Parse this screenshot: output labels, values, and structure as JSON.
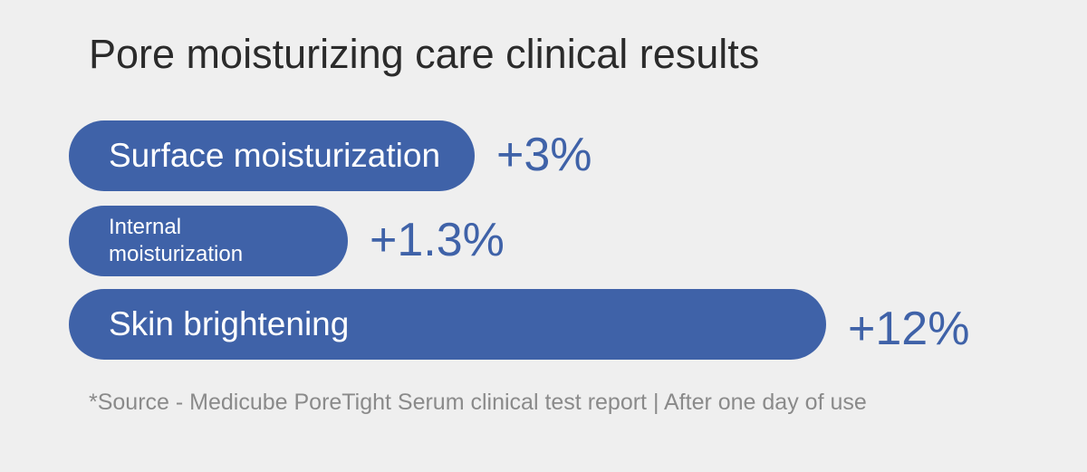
{
  "chart_data": {
    "type": "bar",
    "orientation": "horizontal",
    "title": "Pore moisturizing care clinical results",
    "categories": [
      "Surface moisturization",
      "Internal moisturization",
      "Skin brightening"
    ],
    "values": [
      3,
      1.3,
      12
    ],
    "value_labels": [
      "+3%",
      "+1.3%",
      "+12%"
    ],
    "unit": "%",
    "footnote": "*Source - Medicube PoreTight Serum clinical test report | After one day of use",
    "bar_color": "#3f62a8",
    "grid": false
  }
}
